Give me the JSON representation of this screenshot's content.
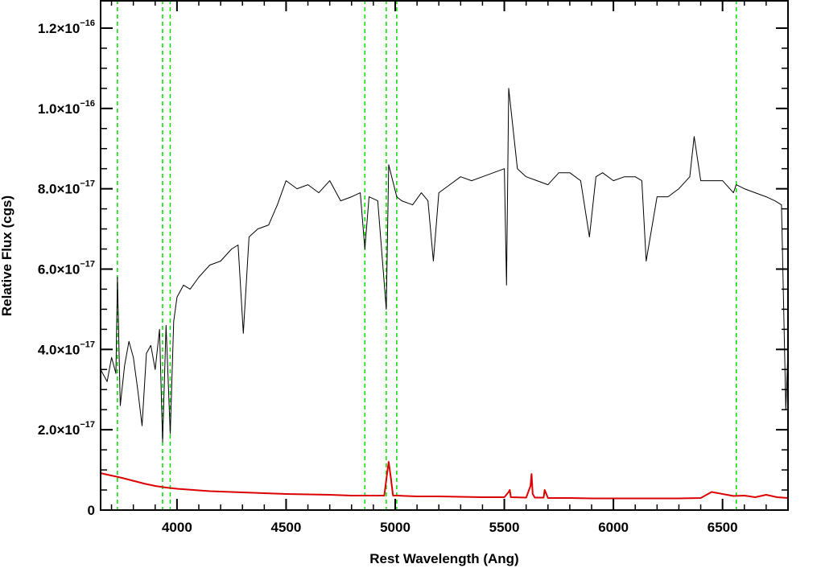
{
  "chart_data": {
    "type": "line",
    "xlabel": "Rest Wavelength (Ang)",
    "ylabel": "Relative Flux (cgs)",
    "xlim": [
      3650,
      6800
    ],
    "ylim": [
      0,
      1.27e-16
    ],
    "grid": false,
    "legend": "none",
    "x_ticks": [
      {
        "value": 4000,
        "label": "4000"
      },
      {
        "value": 4500,
        "label": "4500"
      },
      {
        "value": 5000,
        "label": "5000"
      },
      {
        "value": 5500,
        "label": "5500"
      },
      {
        "value": 6000,
        "label": "6000"
      },
      {
        "value": 6500,
        "label": "6500"
      }
    ],
    "y_ticks": [
      {
        "value": 0,
        "mantissa": "0",
        "exponent": ""
      },
      {
        "value": 2e-17,
        "mantissa": "2.0×10",
        "exponent": "−17"
      },
      {
        "value": 4e-17,
        "mantissa": "4.0×10",
        "exponent": "−17"
      },
      {
        "value": 6e-17,
        "mantissa": "6.0×10",
        "exponent": "−17"
      },
      {
        "value": 8e-17,
        "mantissa": "8.0×10",
        "exponent": "−17"
      },
      {
        "value": 1e-16,
        "mantissa": "1.0×10",
        "exponent": "−16"
      },
      {
        "value": 1.2e-16,
        "mantissa": "1.2×10",
        "exponent": "−16"
      }
    ],
    "vertical_lines": [
      3727,
      3934,
      3969,
      4861,
      4959,
      5007,
      6563
    ],
    "series": [
      {
        "color": "#000000",
        "x": [
          3650,
          3680,
          3700,
          3720,
          3727,
          3740,
          3760,
          3780,
          3800,
          3820,
          3840,
          3860,
          3880,
          3900,
          3920,
          3934,
          3950,
          3969,
          3985,
          4000,
          4030,
          4060,
          4100,
          4150,
          4200,
          4250,
          4280,
          4304,
          4330,
          4370,
          4420,
          4460,
          4500,
          4550,
          4600,
          4650,
          4700,
          4750,
          4800,
          4840,
          4861,
          4880,
          4920,
          4959,
          4970,
          5007,
          5030,
          5080,
          5120,
          5150,
          5175,
          5200,
          5250,
          5300,
          5350,
          5400,
          5450,
          5500,
          5510,
          5520,
          5560,
          5600,
          5650,
          5700,
          5750,
          5800,
          5850,
          5890,
          5920,
          5950,
          6000,
          6050,
          6100,
          6130,
          6150,
          6200,
          6250,
          6300,
          6350,
          6370,
          6400,
          6450,
          6500,
          6550,
          6563,
          6600,
          6650,
          6700,
          6740,
          6770,
          6790,
          6800
        ],
        "values": [
          3.5e-17,
          3.2e-17,
          3.8e-17,
          3.4e-17,
          5.8e-17,
          2.6e-17,
          3.6e-17,
          4.2e-17,
          3.8e-17,
          3e-17,
          2.1e-17,
          3.9e-17,
          4.1e-17,
          3.5e-17,
          4.5e-17,
          1.7e-17,
          4.6e-17,
          1.9e-17,
          4.7e-17,
          5.3e-17,
          5.6e-17,
          5.5e-17,
          5.8e-17,
          6.1e-17,
          6.2e-17,
          6.5e-17,
          6.6e-17,
          4.4e-17,
          6.8e-17,
          7e-17,
          7.1e-17,
          7.6e-17,
          8.2e-17,
          8e-17,
          8.1e-17,
          7.9e-17,
          8.2e-17,
          7.7e-17,
          7.8e-17,
          7.9e-17,
          6.5e-17,
          7.8e-17,
          7.7e-17,
          5e-17,
          8.6e-17,
          7.8e-17,
          7.7e-17,
          7.6e-17,
          7.9e-17,
          7.7e-17,
          6.2e-17,
          7.9e-17,
          8.1e-17,
          8.3e-17,
          8.2e-17,
          8.3e-17,
          8.4e-17,
          8.5e-17,
          5.6e-17,
          1.05e-16,
          8.5e-17,
          8.3e-17,
          8.2e-17,
          8.1e-17,
          8.4e-17,
          8.4e-17,
          8.2e-17,
          6.8e-17,
          8.3e-17,
          8.4e-17,
          8.2e-17,
          8.3e-17,
          8.3e-17,
          8.2e-17,
          6.2e-17,
          7.8e-17,
          7.8e-17,
          8e-17,
          8.3e-17,
          9.3e-17,
          8.2e-17,
          8.2e-17,
          8.2e-17,
          7.9e-17,
          8.1e-17,
          8e-17,
          7.9e-17,
          7.8e-17,
          7.7e-17,
          7.6e-17,
          2.5e-17,
          4e-17
        ]
      },
      {
        "color": "#dd0000",
        "x": [
          3650,
          3700,
          3750,
          3800,
          3850,
          3900,
          3950,
          4000,
          4050,
          4100,
          4150,
          4200,
          4250,
          4300,
          4400,
          4500,
          4600,
          4700,
          4800,
          4900,
          4950,
          4965,
          4970,
          4980,
          4990,
          5010,
          5050,
          5100,
          5200,
          5300,
          5400,
          5500,
          5520,
          5525,
          5530,
          5600,
          5620,
          5625,
          5630,
          5640,
          5680,
          5685,
          5700,
          5800,
          5900,
          6000,
          6100,
          6200,
          6300,
          6400,
          6450,
          6500,
          6550,
          6600,
          6650,
          6700,
          6750,
          6800
        ],
        "values": [
          9.2e-18,
          8.6e-18,
          8e-18,
          7.3e-18,
          6.6e-18,
          6e-18,
          5.6e-18,
          5.3e-18,
          5.1e-18,
          4.9e-18,
          4.7e-18,
          4.6e-18,
          4.5e-18,
          4.4e-18,
          4.2e-18,
          4e-18,
          3.9e-18,
          3.8e-18,
          3.6e-18,
          3.6e-18,
          3.6e-18,
          1e-17,
          1.2e-17,
          8e-18,
          3.6e-18,
          3.6e-18,
          3.5e-18,
          3.4e-18,
          3.4e-18,
          3.3e-18,
          3.2e-18,
          3.2e-18,
          4.5e-18,
          5e-18,
          3.2e-18,
          3.1e-18,
          6e-18,
          9e-18,
          4e-18,
          3.1e-18,
          3.1e-18,
          5e-18,
          3e-18,
          3e-18,
          2.9e-18,
          2.9e-18,
          2.9e-18,
          2.9e-18,
          2.9e-18,
          3e-18,
          4.5e-18,
          4e-18,
          3.5e-18,
          3.6e-18,
          3.2e-18,
          3.8e-18,
          3.2e-18,
          3e-18
        ]
      }
    ]
  }
}
